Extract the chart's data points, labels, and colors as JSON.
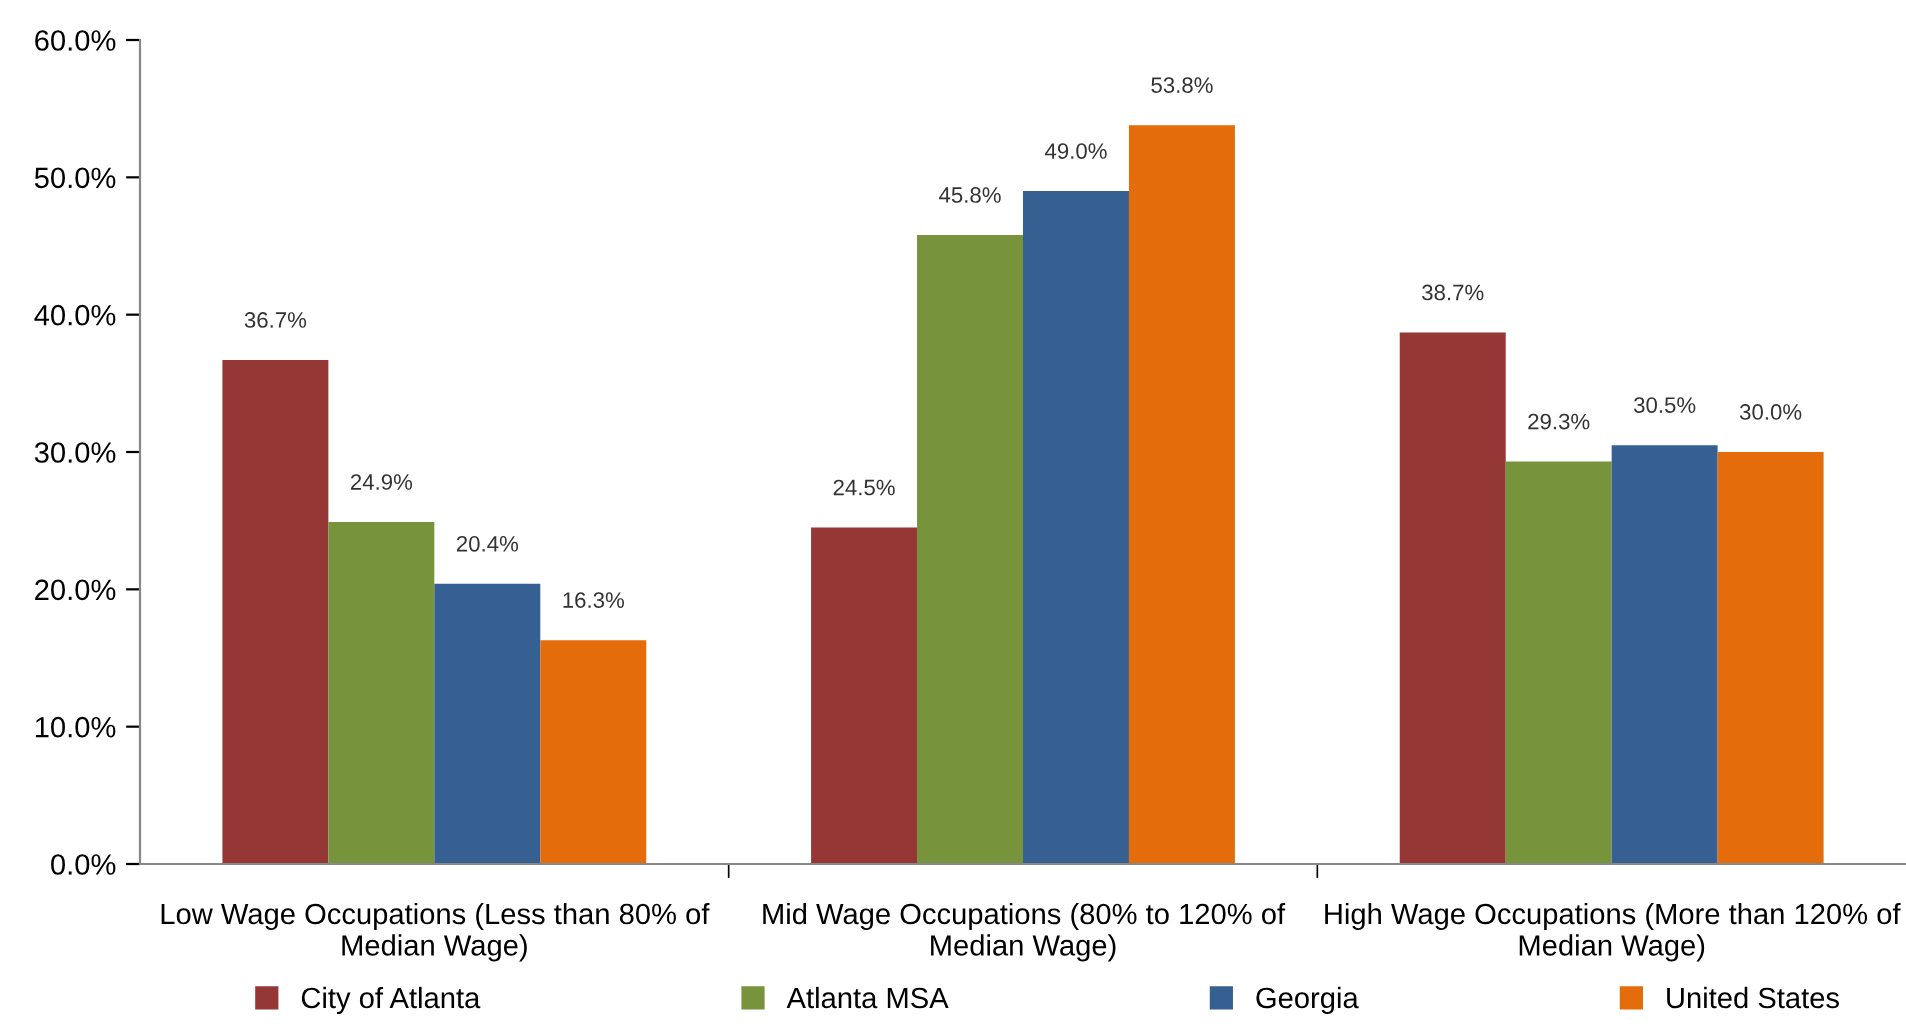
{
  "chart_data": {
    "type": "bar",
    "categories": [
      "Low Wage Occupations (Less than 80% of\nMedian Wage)",
      "Mid Wage Occupations (80% to 120% of\nMedian Wage)",
      "High Wage Occupations (More than 120% of\nMedian Wage)"
    ],
    "series": [
      {
        "name": "City of Atlanta",
        "color": "#953735",
        "values": [
          36.7,
          24.5,
          38.7
        ],
        "value_labels": [
          "36.7%",
          "24.5%",
          "38.7%"
        ]
      },
      {
        "name": "Atlanta MSA",
        "color": "#77933c",
        "values": [
          24.9,
          45.8,
          29.3
        ],
        "value_labels": [
          "24.9%",
          "45.8%",
          "29.3%"
        ]
      },
      {
        "name": "Georgia",
        "color": "#376092",
        "values": [
          20.4,
          49.0,
          30.5
        ],
        "value_labels": [
          "20.4%",
          "49.0%",
          "30.5%"
        ]
      },
      {
        "name": "United States",
        "color": "#e46c0a",
        "values": [
          16.3,
          53.8,
          30.0
        ],
        "value_labels": [
          "16.3%",
          "53.8%",
          "30.0%"
        ]
      }
    ],
    "ylim": [
      0,
      60
    ],
    "yticks": [
      {
        "value": 0,
        "label": "0.0%"
      },
      {
        "value": 10,
        "label": "10.0%"
      },
      {
        "value": 20,
        "label": "20.0%"
      },
      {
        "value": 30,
        "label": "30.0%"
      },
      {
        "value": 40,
        "label": "40.0%"
      },
      {
        "value": 50,
        "label": "50.0%"
      },
      {
        "value": 60,
        "label": "60.0%"
      }
    ],
    "grid": false,
    "legend": "bottom"
  }
}
